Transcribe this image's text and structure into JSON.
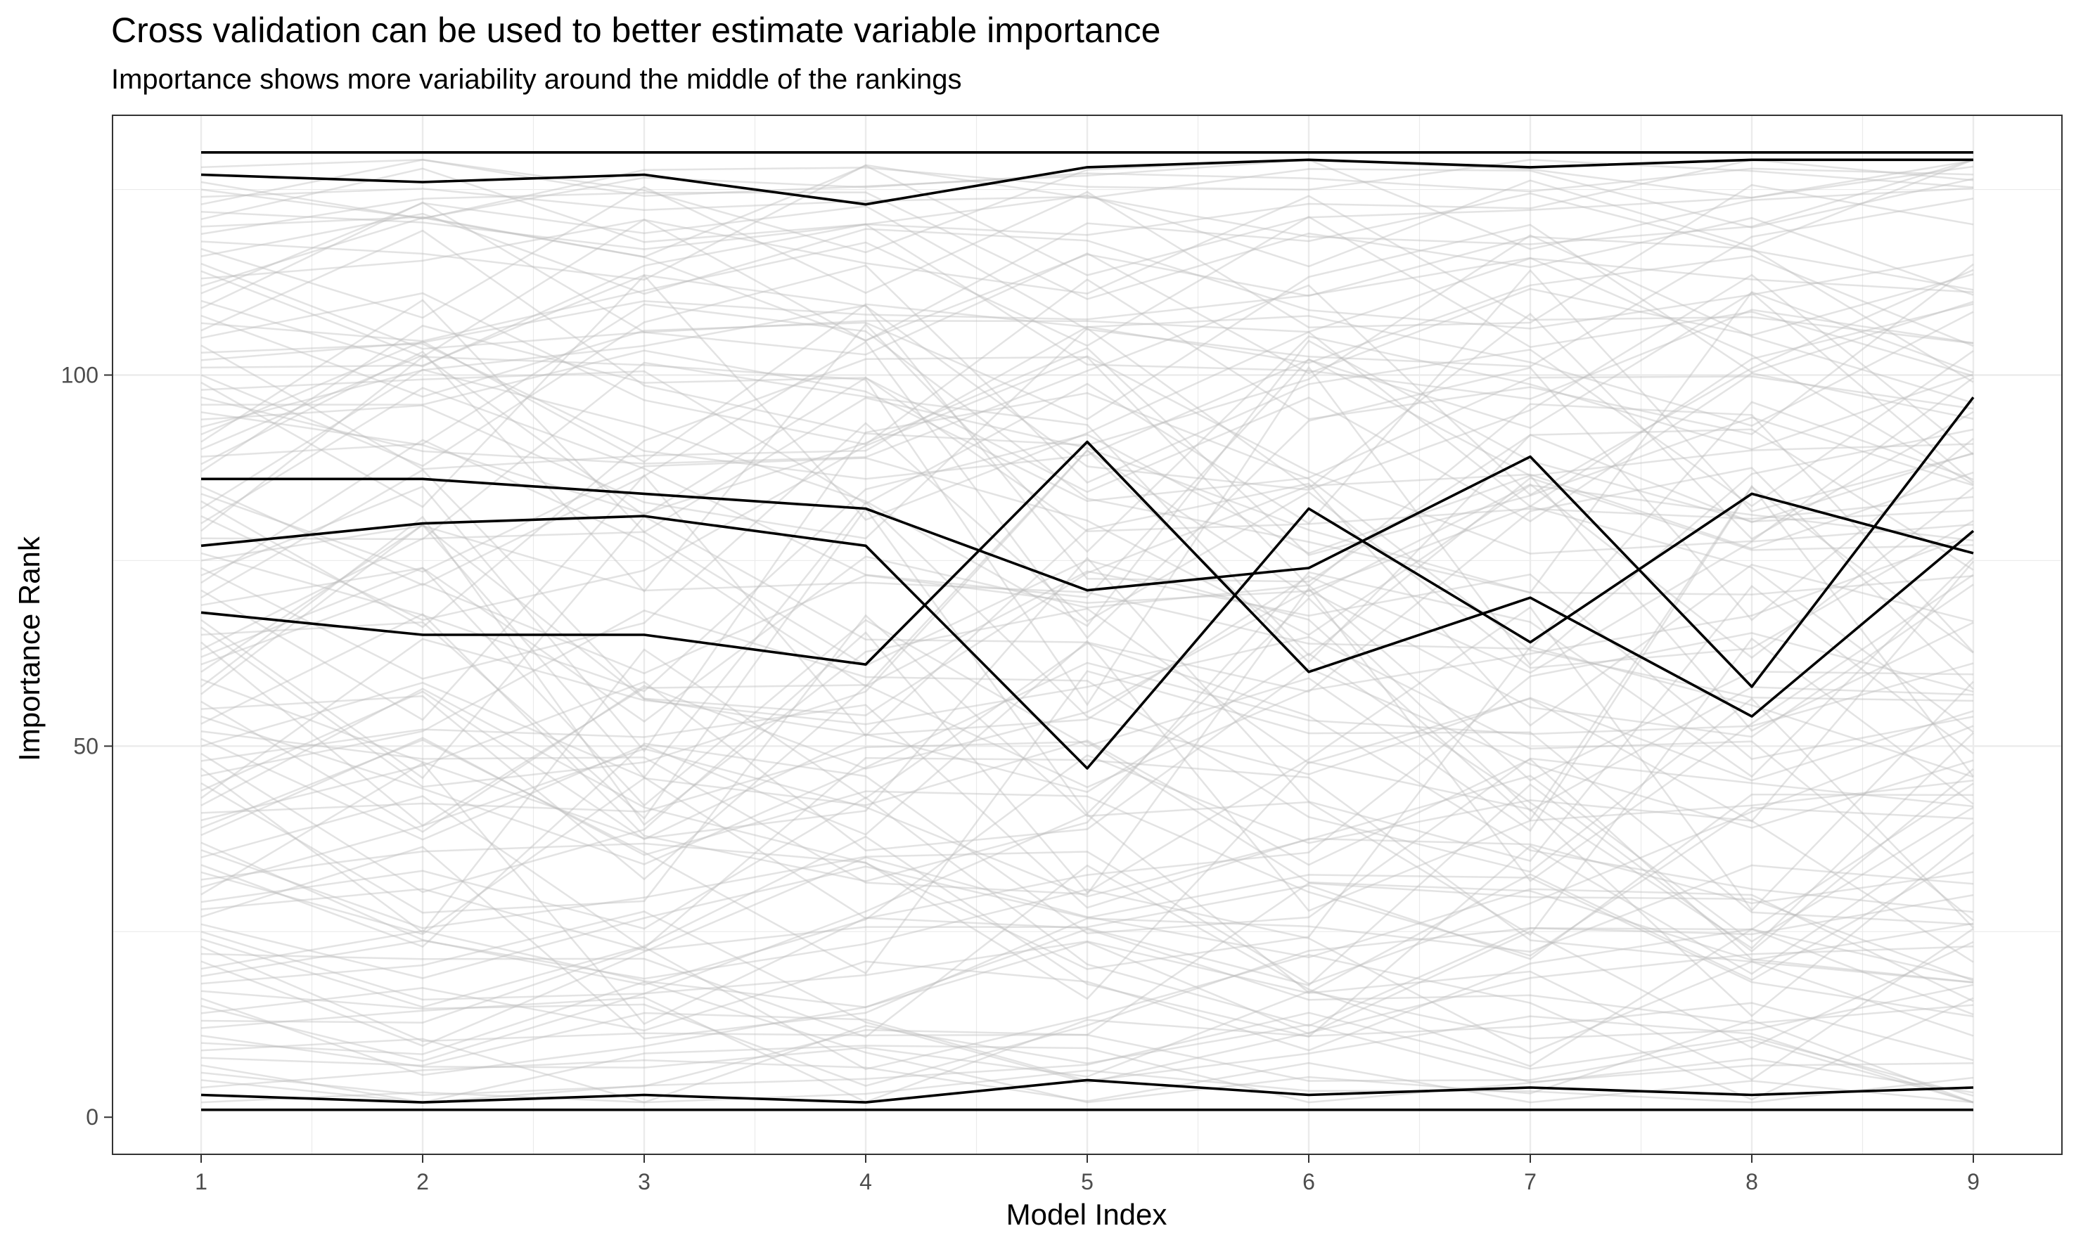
{
  "chart_data": {
    "type": "line",
    "title": "Cross validation can be used to better estimate variable importance",
    "subtitle": "Importance shows more variability around the middle of the rankings",
    "xlabel": "Model Index",
    "ylabel": "Importance Rank",
    "x": [
      1,
      2,
      3,
      4,
      5,
      6,
      7,
      8,
      9
    ],
    "xlim": [
      0.6,
      9.4
    ],
    "ylim": [
      -5,
      135
    ],
    "x_ticks": [
      "1",
      "2",
      "3",
      "4",
      "5",
      "6",
      "7",
      "8",
      "9"
    ],
    "y_ticks": [
      "0",
      "50",
      "100"
    ],
    "grid": true,
    "legend": "none",
    "background_variables": 122,
    "highlight_color": "#000000",
    "background_color": "#bdbdbd",
    "highlighted_series": [
      {
        "values": [
          130,
          130,
          130,
          130,
          130,
          130,
          130,
          130,
          130
        ]
      },
      {
        "values": [
          127,
          126,
          127,
          123,
          128,
          129,
          128,
          129,
          129
        ]
      },
      {
        "values": [
          86,
          86,
          84,
          82,
          71,
          74,
          89,
          58,
          97
        ]
      },
      {
        "values": [
          77,
          80,
          81,
          77,
          47,
          82,
          64,
          84,
          76
        ]
      },
      {
        "values": [
          68,
          65,
          65,
          61,
          91,
          60,
          70,
          54,
          79
        ]
      },
      {
        "values": [
          3,
          2,
          3,
          2,
          5,
          3,
          4,
          3,
          4
        ]
      },
      {
        "values": [
          1,
          1,
          1,
          1,
          1,
          1,
          1,
          1,
          1
        ]
      }
    ]
  }
}
